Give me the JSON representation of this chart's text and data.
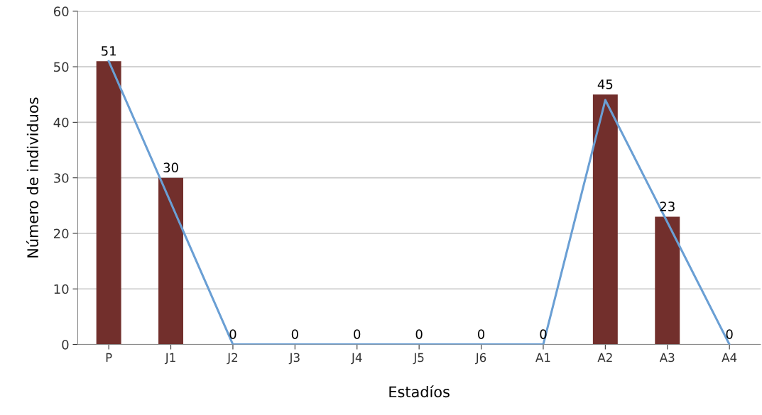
{
  "chart_data": {
    "type": "bar",
    "xlabel": "Estadíos",
    "ylabel": "Número de individuos",
    "categories": [
      "P",
      "J1",
      "J2",
      "J3",
      "J4",
      "J5",
      "J6",
      "A1",
      "A2",
      "A3",
      "A4"
    ],
    "series": [
      {
        "color": "#722f2c",
        "values": [
          51,
          30,
          0,
          0,
          0,
          0,
          0,
          0,
          45,
          23,
          0
        ],
        "value_labels": [
          "51",
          "30",
          "0",
          "0",
          "0",
          "0",
          "0",
          "0",
          "45",
          "23",
          "0"
        ]
      },
      {
        "type": "line",
        "color": "#6a9fd4",
        "values": [
          51,
          25.5,
          0,
          0,
          0,
          0,
          0,
          0,
          44,
          22,
          0
        ]
      }
    ],
    "ylim": [
      0,
      60
    ],
    "yticks": [
      0,
      10,
      20,
      30,
      40,
      50,
      60
    ],
    "grid": "y",
    "marker": "none",
    "line_style": "solid"
  }
}
